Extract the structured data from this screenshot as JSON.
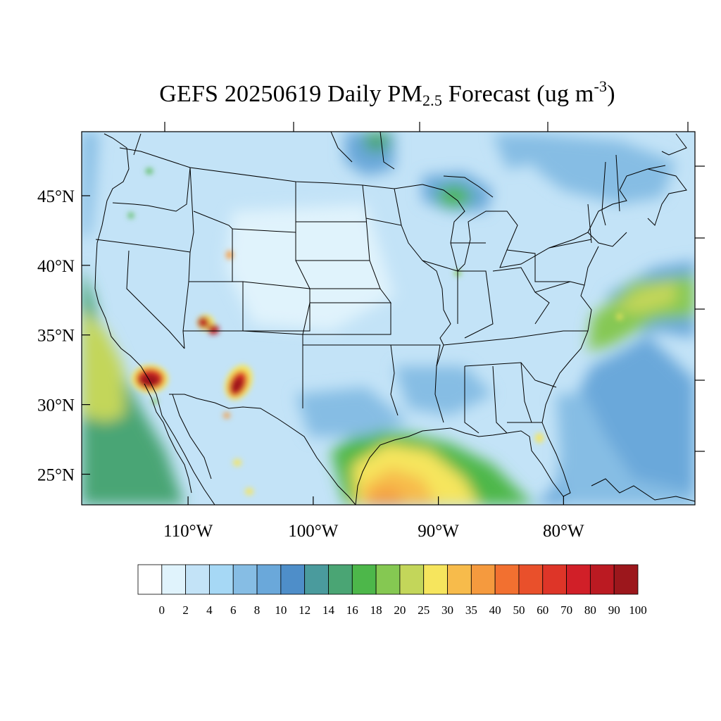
{
  "title": {
    "prefix": "GEFS 20250619 Daily PM",
    "subscript": "2.5",
    "middle": " Forecast (ug m",
    "superscript": "-3",
    "suffix": ")"
  },
  "map": {
    "lon_range": [
      -118.5,
      -69.5
    ],
    "lat_range": [
      22.8,
      49.6
    ],
    "lat_labels": [
      {
        "lat": 45,
        "text": "45°N"
      },
      {
        "lat": 40,
        "text": "40°N"
      },
      {
        "lat": 35,
        "text": "35°N"
      },
      {
        "lat": 30,
        "text": "30°N"
      },
      {
        "lat": 25,
        "text": "25°N"
      }
    ],
    "lon_labels": [
      {
        "lon": -110,
        "text": "110°W"
      },
      {
        "lon": -100,
        "text": "100°W"
      },
      {
        "lon": -90,
        "text": "90°W"
      },
      {
        "lon": -80,
        "text": "80°W"
      }
    ],
    "background_color": "#c3e3f7",
    "land_color": "#bfe2f6"
  },
  "colorbar": {
    "labels": [
      "0",
      "2",
      "4",
      "6",
      "8",
      "10",
      "12",
      "14",
      "16",
      "18",
      "20",
      "25",
      "30",
      "35",
      "40",
      "50",
      "60",
      "70",
      "80",
      "90",
      "100"
    ],
    "colors": [
      "#ffffff",
      "#e0f3fc",
      "#c3e3f7",
      "#a6d8f5",
      "#86bde4",
      "#6aa8da",
      "#4e8ec9",
      "#4a9b9d",
      "#4aa574",
      "#4db74a",
      "#85c852",
      "#c3d65a",
      "#f6e55d",
      "#f7bb4b",
      "#f59a3e",
      "#f27030",
      "#e9502b",
      "#de3528",
      "#d11f28",
      "#bb1a22",
      "#9c171c"
    ]
  }
}
